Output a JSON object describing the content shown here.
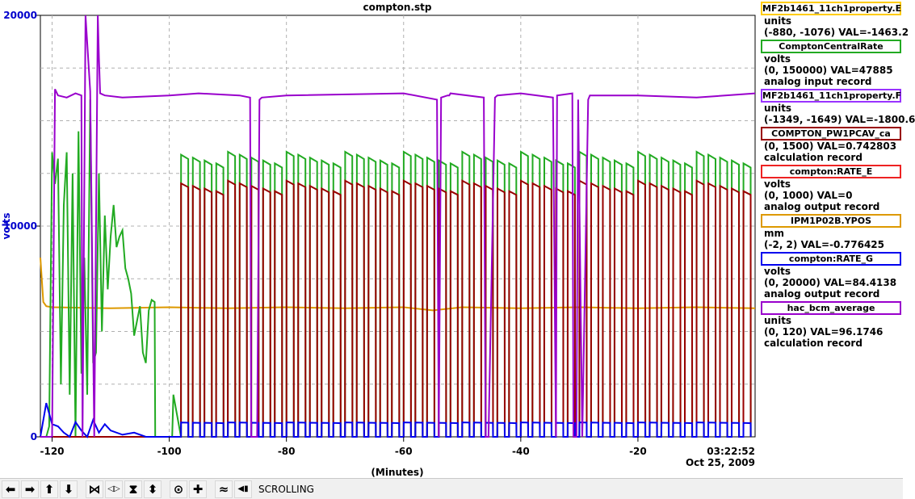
{
  "chart_data": {
    "type": "line",
    "title": "compton.stp",
    "ylabel": "volts",
    "xlabel": "(Minutes)",
    "xlim": [
      -122,
      0
    ],
    "ylim": [
      0,
      20000
    ],
    "x_ticks": [
      -120,
      -100,
      -80,
      -60,
      -40,
      -20
    ],
    "y_ticks": [
      0,
      10000,
      20000
    ],
    "timestamp": "03:22:52",
    "date": "Oct 25, 2009",
    "grid": true,
    "colors": {
      "purple": "#9900cc",
      "green": "#22aa22",
      "darkred": "#990000",
      "orange": "#dd9900",
      "blue": "#0000ee"
    },
    "series": [
      {
        "name": "hac_bcm_average",
        "color": "#9900cc",
        "x": [
          -122,
          -120,
          -119.5,
          -119,
          -117.5,
          -116,
          -115,
          -114.8,
          -114.3,
          -113.5,
          -112.8,
          -112.2,
          -112,
          -111.8,
          -111,
          -108,
          -100,
          -95,
          -88,
          -86.2,
          -86,
          -85,
          -84.6,
          -84.2,
          -80,
          -60,
          -54.3,
          -54,
          -53.6,
          -52.5,
          -52.2,
          -52,
          -46.3,
          -46,
          -45.5,
          -44.4,
          -44,
          -40,
          -34.5,
          -34,
          -33.8,
          -31.2,
          -31,
          -30.5,
          -30.2,
          -29.5,
          -28.5,
          -28.2,
          -20,
          -10,
          0
        ],
        "values": [
          0,
          0,
          16500,
          16200,
          16100,
          16300,
          16200,
          0,
          20000,
          16400,
          0,
          20000,
          18000,
          16300,
          16200,
          16100,
          16200,
          16300,
          16200,
          16100,
          0,
          0,
          16000,
          16100,
          16200,
          16300,
          16000,
          0,
          16100,
          16200,
          16200,
          16300,
          16100,
          0,
          0,
          16100,
          16200,
          16300,
          16100,
          0,
          16200,
          16300,
          0,
          0,
          16000,
          0,
          16000,
          16200,
          16200,
          16100,
          16300
        ]
      },
      {
        "name": "ComptonCentralRate",
        "color": "#22aa22",
        "pulsed": true,
        "high": 13800,
        "low": 0,
        "period": 2.0,
        "duty": 0.62,
        "start": -98,
        "x": [
          -122,
          -121,
          -120.5,
          -120,
          -119.5,
          -119,
          -118.5,
          -118,
          -117.5,
          -117,
          -116.5,
          -116,
          -115.5,
          -115,
          -114.5,
          -114,
          -113.5,
          -113,
          -112.5,
          -112,
          -111.5,
          -111,
          -110.5,
          -110,
          -109.5,
          -109,
          -108.5,
          -108,
          -107.5,
          -107,
          -106.5,
          -106,
          -105.5,
          -105,
          -104.5,
          -104,
          -103.5,
          -103,
          -102.5,
          -102.4,
          -99.5,
          -99.3
        ],
        "values": [
          0,
          0,
          500,
          13500,
          12000,
          13200,
          2500,
          11000,
          13500,
          2000,
          12500,
          0,
          14500,
          3000,
          8500,
          2000,
          16000,
          3500,
          4000,
          12500,
          5000,
          10500,
          7000,
          9500,
          11000,
          9000,
          9500,
          9800,
          8000,
          7500,
          6800,
          4800,
          5500,
          6200,
          4000,
          3500,
          6000,
          6500,
          6400,
          0,
          0,
          2000
        ]
      },
      {
        "name": "COMPTON_PW1PCAV_ca",
        "color": "#990000",
        "pulsed": true,
        "high": 12400,
        "low": 0,
        "period": 2.0,
        "duty": 0.62,
        "start": -98,
        "x": [
          -122,
          -100
        ],
        "values": [
          0,
          0
        ]
      },
      {
        "name": "IPM1P02B.YPOS",
        "color": "#dd9900",
        "x": [
          -122,
          -121.5,
          -121,
          -120,
          -110,
          -100,
          -90,
          -80,
          -70,
          -60,
          -55,
          -50,
          -40,
          -30,
          -20,
          -10,
          0
        ],
        "values": [
          8500,
          6400,
          6200,
          6150,
          6100,
          6150,
          6100,
          6150,
          6100,
          6150,
          6000,
          6150,
          6100,
          6150,
          6100,
          6150,
          6100
        ]
      },
      {
        "name": "compton:RATE_G",
        "color": "#0000ee",
        "pulsed": true,
        "high": 700,
        "low": 0,
        "period": 2.0,
        "duty": 0.62,
        "start": -98,
        "x": [
          -122,
          -121,
          -120,
          -119,
          -118,
          -117,
          -116,
          -115,
          -114,
          -113,
          -112,
          -111,
          -110,
          -108,
          -106,
          -104,
          -102,
          -100,
          -99
        ],
        "values": [
          0,
          1600,
          600,
          500,
          200,
          0,
          700,
          300,
          0,
          800,
          200,
          600,
          300,
          100,
          200,
          0,
          0,
          0,
          0
        ]
      }
    ]
  },
  "legend": [
    {
      "name": "MF2b1461_11ch1property.E",
      "color": "#ffcc00",
      "lines": [
        "units",
        "(-880, -1076) VAL=-1463.2"
      ]
    },
    {
      "name": "ComptonCentralRate",
      "color": "#22aa22",
      "lines": [
        "volts",
        "(0, 150000) VAL=47885",
        "analog input record"
      ]
    },
    {
      "name": "MF2b1461_11ch1property.F",
      "color": "#9933ff",
      "lines": [
        "units",
        "(-1349, -1649) VAL=-1800.6"
      ]
    },
    {
      "name": "COMPTON_PW1PCAV_ca",
      "color": "#990000",
      "lines": [
        "(0, 1500) VAL=0.742803",
        "calculation record"
      ]
    },
    {
      "name": "compton:RATE_E",
      "color": "#ee2222",
      "lines": [
        "volts",
        "(0, 1000) VAL=0",
        "analog output record"
      ]
    },
    {
      "name": "IPM1P02B.YPOS",
      "color": "#dd9900",
      "lines": [
        "mm",
        "(-2, 2) VAL=-0.776425"
      ]
    },
    {
      "name": "compton:RATE_G",
      "color": "#0000ee",
      "lines": [
        "volts",
        "(0, 20000) VAL=84.4138",
        "analog output record"
      ]
    },
    {
      "name": "hac_bcm_average",
      "color": "#9900cc",
      "lines": [
        "units",
        "(0, 120) VAL=96.1746",
        "calculation record"
      ]
    }
  ],
  "toolbar": {
    "buttons": [
      {
        "icon": "arrow-left-icon",
        "glyph": "⬅"
      },
      {
        "icon": "arrow-right-icon",
        "glyph": "➡"
      },
      {
        "icon": "arrow-up-icon",
        "glyph": "⬆"
      },
      {
        "icon": "arrow-down-icon",
        "glyph": "⬇"
      },
      {
        "icon": "zoom-in-x-icon",
        "glyph": "⋈"
      },
      {
        "icon": "zoom-out-x-icon",
        "glyph": "◁▷"
      },
      {
        "icon": "zoom-in-y-icon",
        "glyph": "⧗"
      },
      {
        "icon": "zoom-out-y-icon",
        "glyph": "⬍"
      },
      {
        "icon": "record-icon",
        "glyph": "⊙"
      },
      {
        "icon": "add-icon",
        "glyph": "✚"
      },
      {
        "icon": "autoscale-icon",
        "glyph": "≈"
      },
      {
        "icon": "scroll-mode-icon",
        "glyph": "◀▮"
      }
    ],
    "mode_label": "SCROLLING"
  }
}
